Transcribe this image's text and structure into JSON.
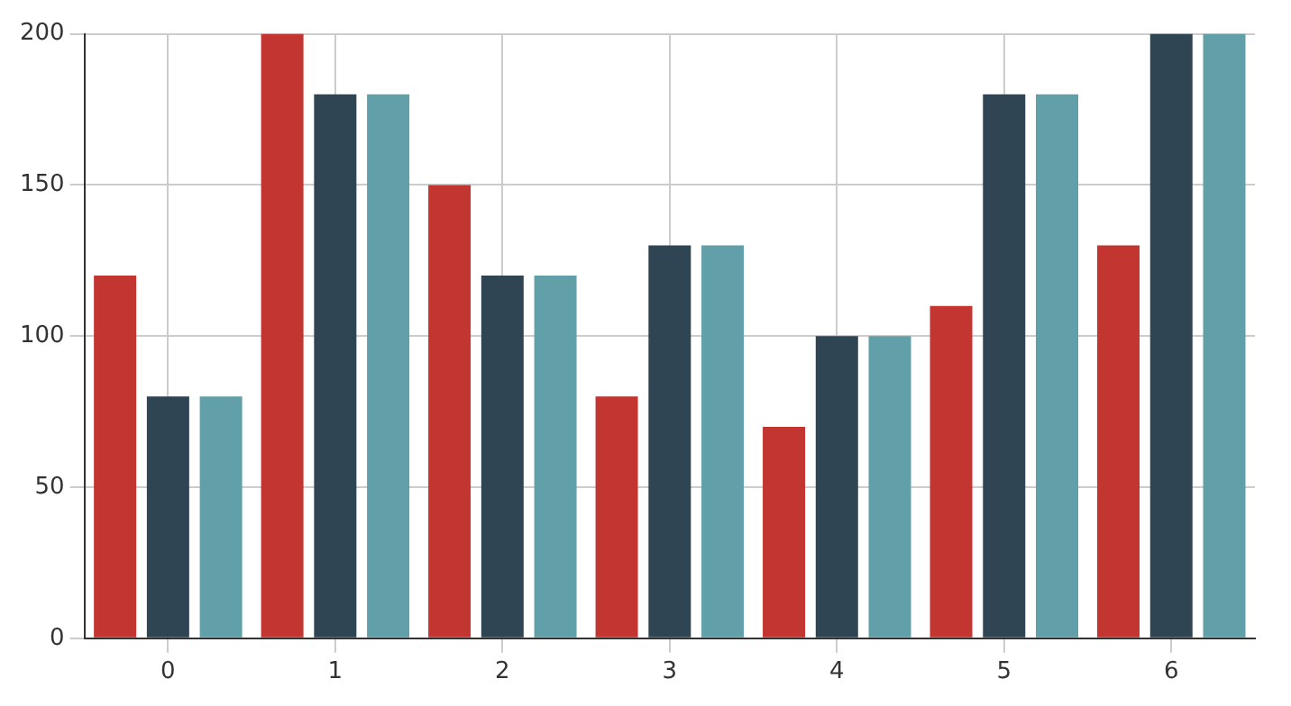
{
  "chart_data": {
    "type": "bar",
    "categories": [
      "0",
      "1",
      "2",
      "3",
      "4",
      "5",
      "6"
    ],
    "series": [
      {
        "color": "#c23531",
        "values": [
          120,
          200,
          150,
          80,
          70,
          110,
          130
        ]
      },
      {
        "color": "#2f4554",
        "values": [
          80,
          180,
          120,
          130,
          100,
          180,
          200
        ]
      },
      {
        "color": "#61a0a8",
        "values": [
          80,
          180,
          120,
          130,
          100,
          180,
          200
        ]
      }
    ],
    "ylim": [
      0,
      200
    ],
    "yticks": [
      0,
      50,
      100,
      150,
      200
    ],
    "grid": true,
    "legend": false
  }
}
